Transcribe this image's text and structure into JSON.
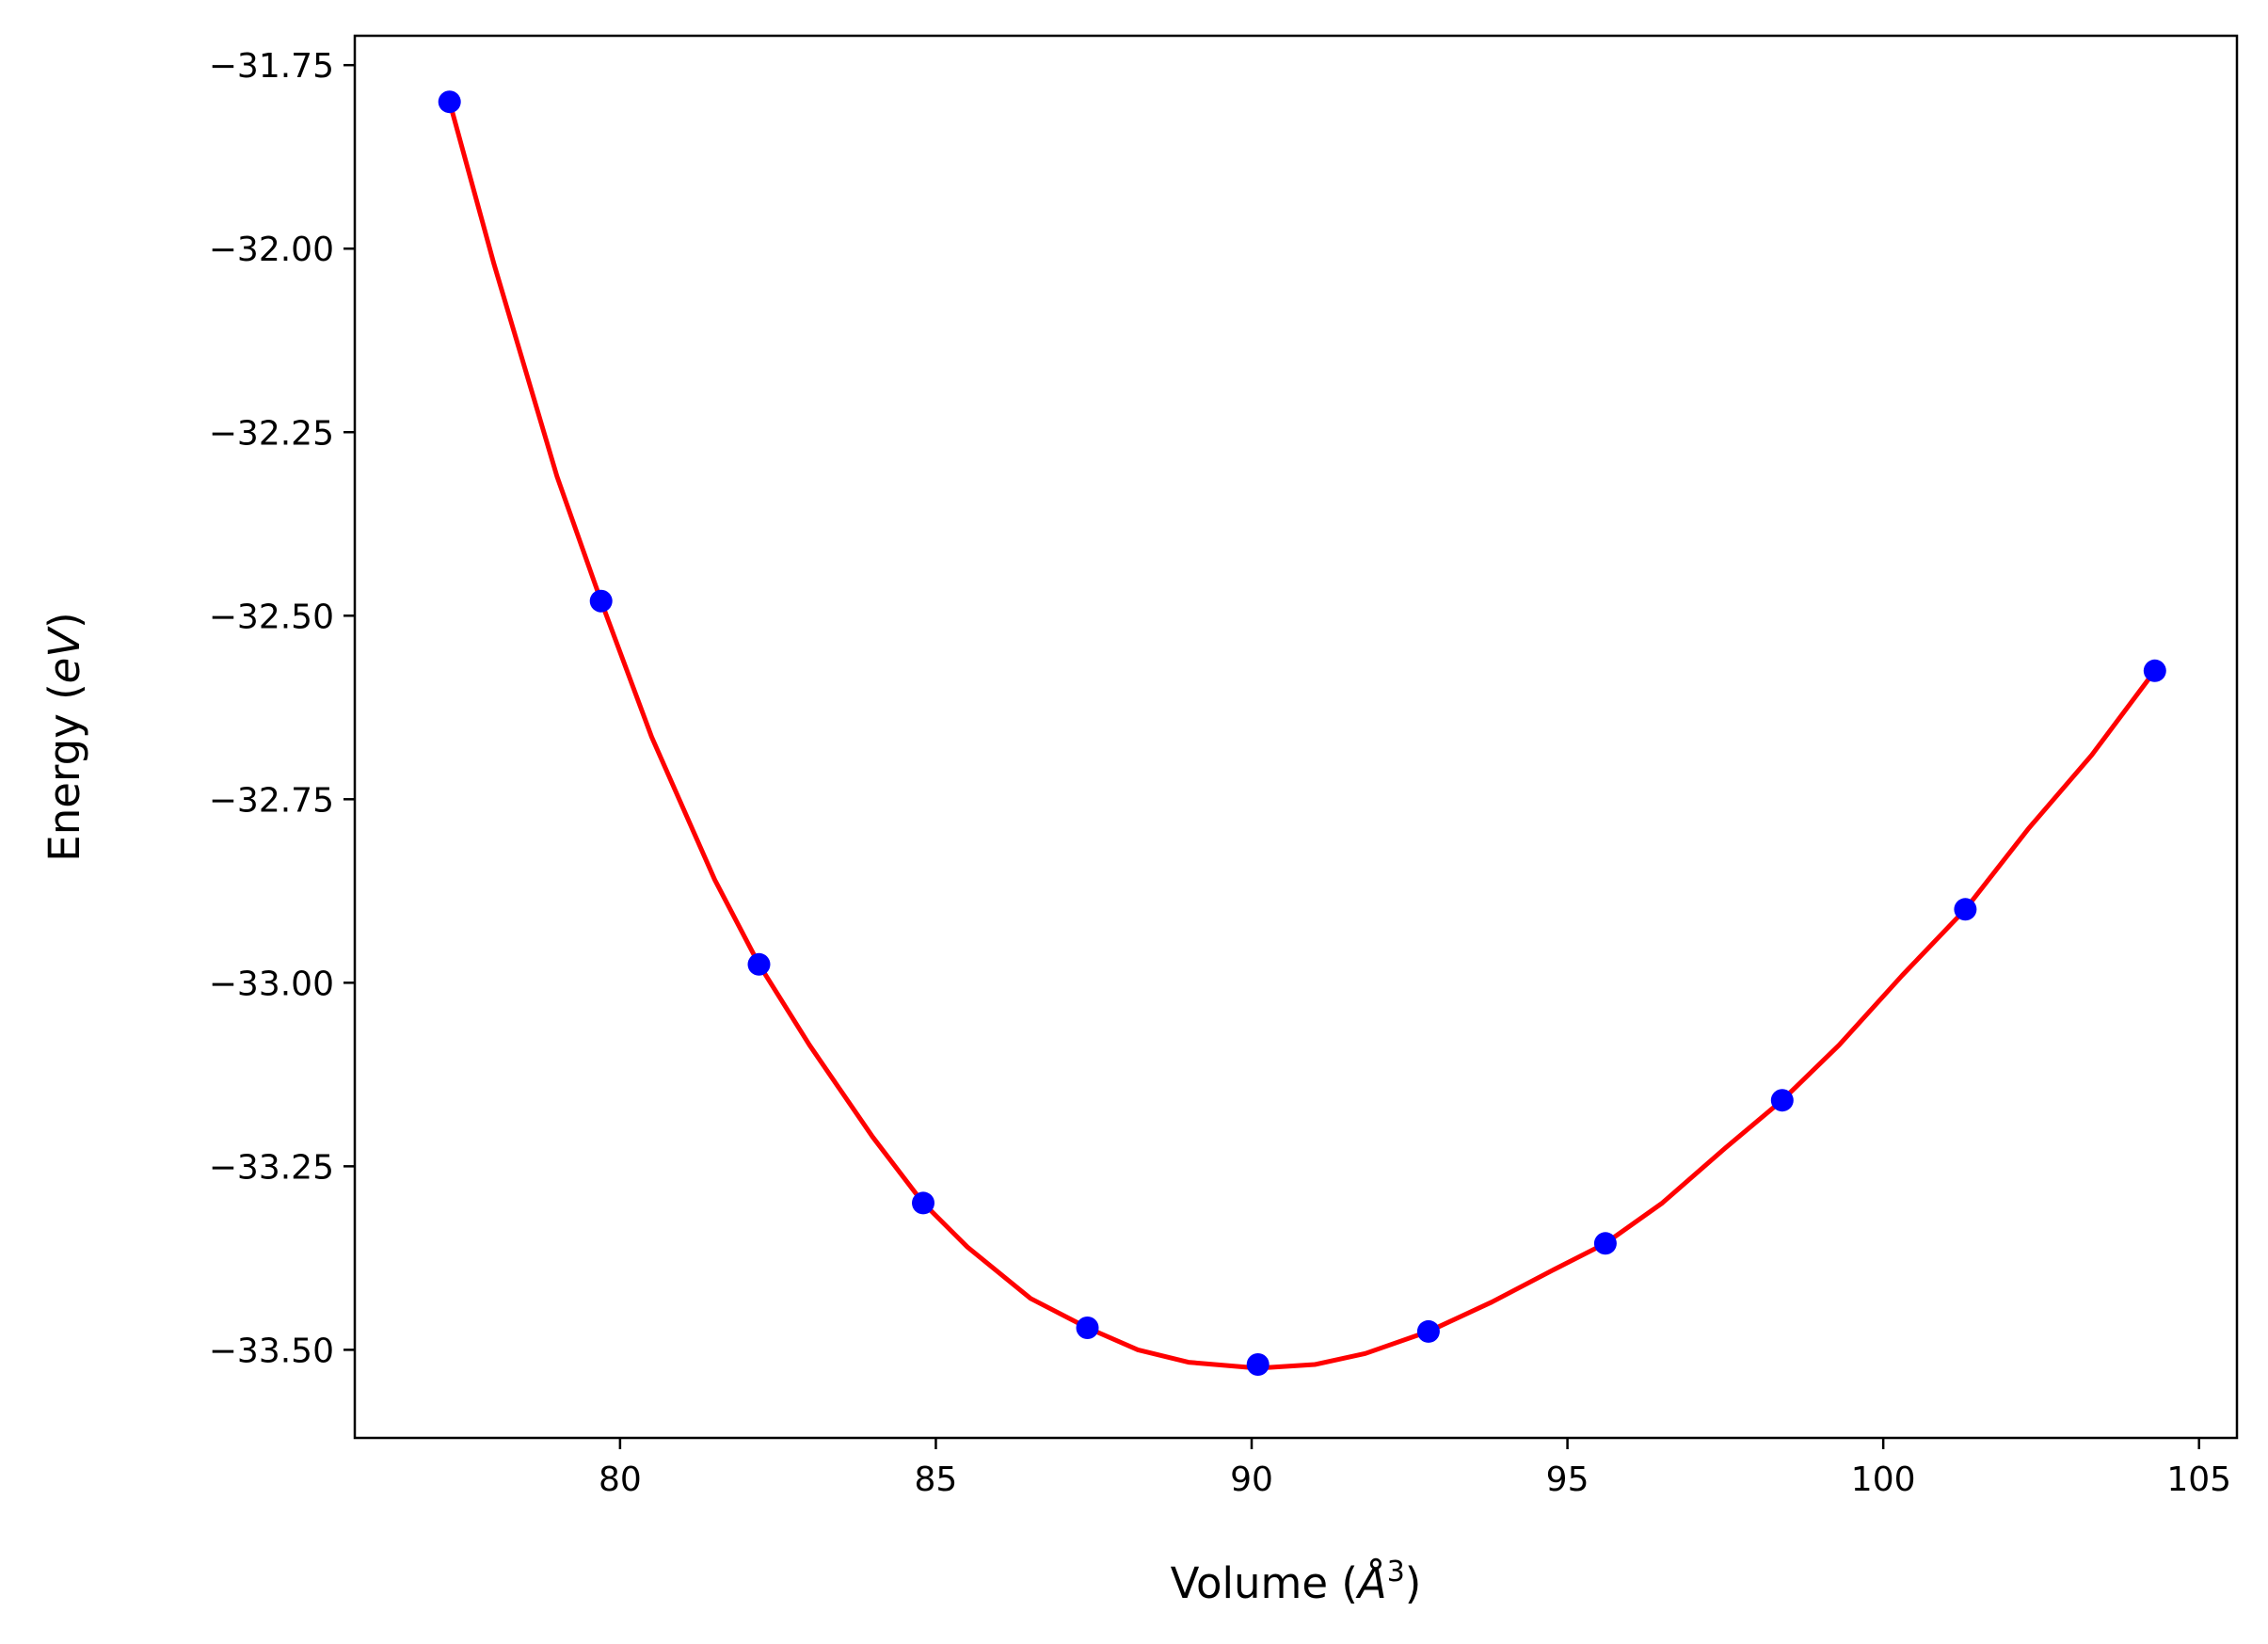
{
  "chart_data": {
    "type": "scatter",
    "xlabel_parts": [
      "Volume (",
      "Å",
      "3",
      ")"
    ],
    "ylabel_parts": [
      "Energy (",
      "eV",
      ")"
    ],
    "xlim": [
      75.8,
      105.6
    ],
    "ylim": [
      -33.62,
      -31.71
    ],
    "x_ticks": [
      80,
      85,
      90,
      95,
      100,
      105
    ],
    "x_tick_labels": [
      "80",
      "85",
      "90",
      "95",
      "100",
      "105"
    ],
    "y_ticks": [
      -31.75,
      -32.0,
      -32.25,
      -32.5,
      -32.75,
      -33.0,
      -33.25,
      -33.5
    ],
    "y_tick_labels": [
      "−31.75",
      "−32.00",
      "−32.25",
      "−32.50",
      "−32.75",
      "−33.00",
      "−33.25",
      "−33.50"
    ],
    "grid": false,
    "series": [
      {
        "kind": "points",
        "color": "#0000ff",
        "x": [
          77.3,
          79.7,
          82.2,
          84.8,
          87.4,
          90.1,
          92.8,
          95.6,
          98.4,
          101.3,
          104.3
        ],
        "y": [
          -31.8,
          -32.48,
          -32.975,
          -33.3,
          -33.47,
          -33.52,
          -33.475,
          -33.355,
          -33.16,
          -32.9,
          -32.575
        ]
      },
      {
        "kind": "fit-curve",
        "color": "#ff0000",
        "x": [
          77.3,
          78.0,
          79.0,
          79.7,
          80.5,
          81.5,
          82.2,
          83.0,
          84.0,
          84.8,
          85.5,
          86.5,
          87.4,
          88.2,
          89.0,
          90.1,
          91.0,
          91.8,
          92.8,
          93.8,
          94.8,
          95.6,
          96.5,
          97.5,
          98.4,
          99.3,
          100.3,
          101.3,
          102.3,
          103.3,
          104.3
        ],
        "y": [
          -31.8,
          -32.02,
          -32.31,
          -32.48,
          -32.665,
          -32.86,
          -32.975,
          -33.085,
          -33.21,
          -33.3,
          -33.36,
          -33.43,
          -33.47,
          -33.5,
          -33.517,
          -33.525,
          -33.52,
          -33.505,
          -33.475,
          -33.435,
          -33.39,
          -33.355,
          -33.3,
          -33.225,
          -33.16,
          -33.085,
          -32.99,
          -32.9,
          -32.79,
          -32.69,
          -32.575
        ]
      }
    ]
  }
}
